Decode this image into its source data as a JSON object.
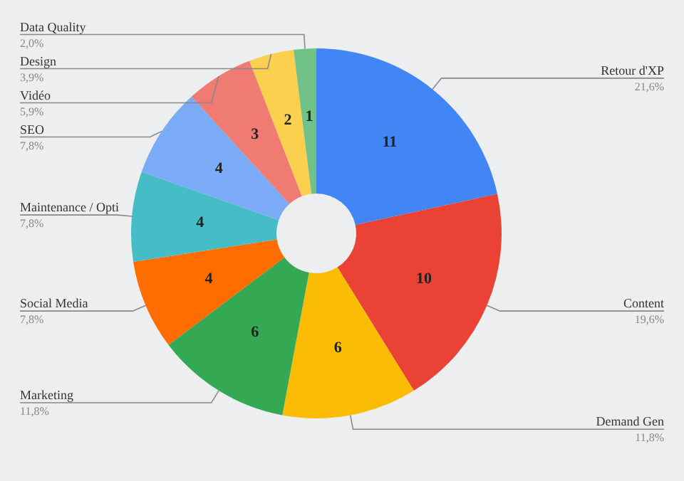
{
  "chart_data": {
    "type": "donut",
    "categories": [
      "Retour d'XP",
      "Content",
      "Demand Gen",
      "Marketing",
      "Social Media",
      "Maintenance / Opti",
      "SEO",
      "Vidéo",
      "Design",
      "Data Quality"
    ],
    "values": [
      11,
      10,
      6,
      6,
      4,
      4,
      4,
      3,
      2,
      1
    ],
    "data_labels": true,
    "annotations": [
      {
        "text": "21,6%",
        "x": "Retour d'XP"
      },
      {
        "text": "19,6%",
        "x": "Content"
      },
      {
        "text": "11,8%",
        "x": "Demand Gen"
      },
      {
        "text": "11,8%",
        "x": "Marketing"
      },
      {
        "text": "7,8%",
        "x": "Social Media"
      },
      {
        "text": "7,8%",
        "x": "Maintenance / Opti"
      },
      {
        "text": "7,8%",
        "x": "SEO"
      },
      {
        "text": "5,9%",
        "x": "Vidéo"
      },
      {
        "text": "3,9%",
        "x": "Design"
      },
      {
        "text": "2,0%",
        "x": "Data Quality"
      }
    ],
    "colors": [
      "#4285f4",
      "#ea4335",
      "#fbbc05",
      "#34a853",
      "#ff6d01",
      "#46bdc6",
      "#7baaf7",
      "#f07b72",
      "#fcd04f",
      "#71c287"
    ],
    "legend": false
  }
}
